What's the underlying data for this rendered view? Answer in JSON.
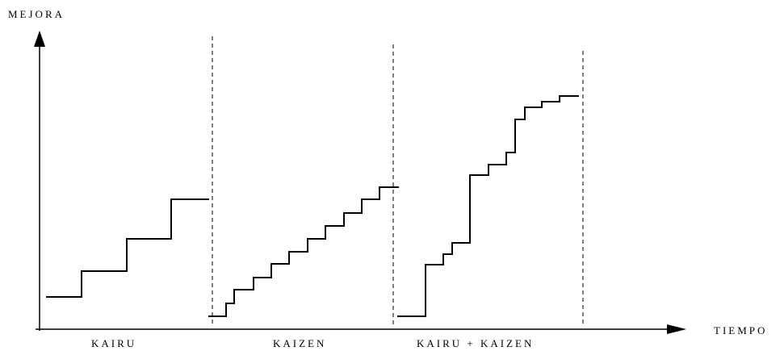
{
  "axes": {
    "y_label": "MEJORA",
    "x_label": "TIEMPO"
  },
  "sections": [
    {
      "id": "kairu",
      "label": "KAIRU"
    },
    {
      "id": "kaizen",
      "label": "KAIZEN"
    },
    {
      "id": "kairu-kaizen",
      "label": "KAIRU + KAIZEN"
    }
  ],
  "colors": {
    "ink": "#000000",
    "background": "#ffffff"
  }
}
